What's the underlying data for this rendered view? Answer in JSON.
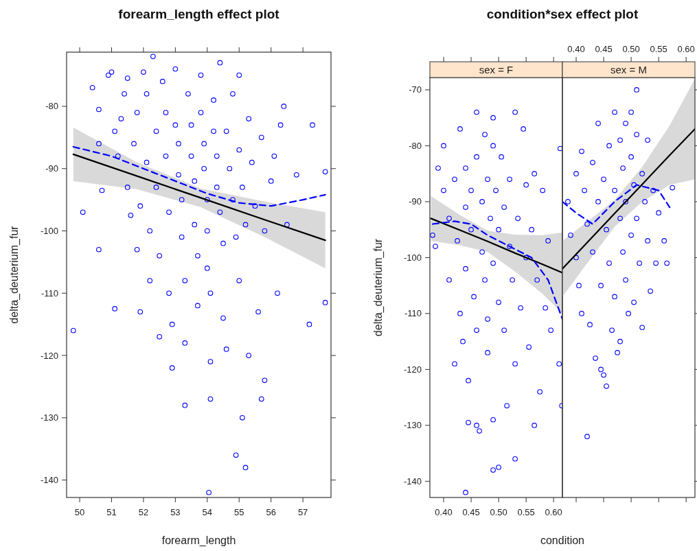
{
  "chart_data": [
    {
      "type": "scatter",
      "title": "forearm_length effect plot",
      "xlabel": "forearm_length",
      "ylabel": "delta_deuterium_fur",
      "xlim": [
        49.59,
        57.88
      ],
      "xticks": [
        50,
        51,
        52,
        53,
        54,
        55,
        56,
        57
      ],
      "ylim": [
        -142.8,
        -71.3
      ],
      "yticks": [
        -80,
        -90,
        -100,
        -110,
        -120,
        -130,
        -140
      ],
      "series": [
        {
          "type": "scatter",
          "marker": "circle",
          "color": "#0000ff",
          "x": [
            49.8,
            50.1,
            50.4,
            50.6,
            50.6,
            50.7,
            50.6,
            50.9,
            51.0,
            51.1,
            51.2,
            51.1,
            51.3,
            51.4,
            51.5,
            51.5,
            51.6,
            51.7,
            51.8,
            51.8,
            51.9,
            51.9,
            52.0,
            52.1,
            52.1,
            52.2,
            52.2,
            52.3,
            52.4,
            52.4,
            52.5,
            52.5,
            52.6,
            52.7,
            52.7,
            52.8,
            52.8,
            52.9,
            52.9,
            53.0,
            53.0,
            53.1,
            53.1,
            53.2,
            53.2,
            53.3,
            53.3,
            53.3,
            53.4,
            53.5,
            53.5,
            53.6,
            53.6,
            53.7,
            53.7,
            53.8,
            53.8,
            53.9,
            53.9,
            54.0,
            54.0,
            54.0,
            54.1,
            54.1,
            54.1,
            54.05,
            54.2,
            54.2,
            54.3,
            54.3,
            54.4,
            54.4,
            54.5,
            54.5,
            54.6,
            54.6,
            54.7,
            54.8,
            54.8,
            54.9,
            54.9,
            55.0,
            55.0,
            55.0,
            55.1,
            55.1,
            55.2,
            55.2,
            55.3,
            55.3,
            55.4,
            55.5,
            55.6,
            55.7,
            55.7,
            55.8,
            55.8,
            56.0,
            56.1,
            56.2,
            56.3,
            56.4,
            56.5,
            56.8,
            57.2,
            57.3,
            57.7,
            57.7
          ],
          "values": [
            -116,
            -97,
            -77,
            -80.5,
            -86,
            -93.5,
            -103,
            -75,
            -74.5,
            -84,
            -88,
            -112.5,
            -82,
            -78,
            -75.5,
            -93,
            -97.5,
            -86,
            -81,
            -103,
            -96,
            -113,
            -74.5,
            -78,
            -89,
            -100,
            -108,
            -72,
            -84,
            -93,
            -104,
            -117,
            -76,
            -81,
            -88,
            -97,
            -110,
            -115,
            -122,
            -74,
            -83,
            -86,
            -91,
            -95,
            -101,
            -108,
            -118,
            -128,
            -78,
            -83,
            -88,
            -92,
            -99,
            -104,
            -112,
            -75,
            -81,
            -86,
            -90,
            -95,
            -100,
            -106,
            -110,
            -121,
            -127,
            -142,
            -79,
            -84,
            -88,
            -93,
            -73,
            -97,
            -102,
            -114,
            -119,
            -84,
            -90,
            -78,
            -95,
            -101,
            -136,
            -75,
            -87,
            -108,
            -130,
            -93,
            -99,
            -138,
            -82,
            -120,
            -89,
            -96,
            -113,
            -85,
            -127,
            -124,
            -100,
            -92,
            -88,
            -110,
            -83,
            -80,
            -99,
            -91,
            -115,
            -83,
            -90.5,
            -111.5
          ]
        },
        {
          "type": "line",
          "marker": "none",
          "color": "#000000",
          "x": [
            49.8,
            51.8,
            53.8,
            55.8,
            57.7
          ],
          "values": [
            -87.7,
            -91.2,
            -94.7,
            -98.2,
            -101.5
          ],
          "lower": [
            -92,
            -93.3,
            -96.2,
            -101,
            -106
          ],
          "upper": [
            -83.4,
            -89,
            -93.2,
            -95.3,
            -97
          ]
        },
        {
          "type": "line",
          "marker": "none",
          "line_style": "dashed",
          "color": "#0000ff",
          "x": [
            49.8,
            51,
            52,
            53,
            54,
            55,
            56,
            57,
            57.7
          ],
          "values": [
            -86.5,
            -88,
            -90,
            -92,
            -94,
            -95.5,
            -96,
            -95,
            -94.2
          ]
        }
      ]
    },
    {
      "type": "scatter",
      "title": "condition*sex effect plot",
      "subtitle": "sex = F",
      "xlabel": "condition",
      "ylabel": "delta_deuterium_fur",
      "xlim": [
        0.375,
        0.616
      ],
      "xticks": [
        {
          "value": 0.4,
          "label": "0.40"
        },
        0.45,
        {
          "value": 0.5,
          "label": "0.50"
        },
        0.55,
        {
          "value": 0.6,
          "label": "0.60"
        }
      ],
      "ylim": [
        -142.9,
        -67.8
      ],
      "yticks": [
        -70,
        -80,
        -90,
        -100,
        -110,
        -120,
        -130,
        -140
      ],
      "series": [
        {
          "type": "scatter",
          "marker": "circle",
          "color": "#0000ff",
          "x": [
            0.38,
            0.385,
            0.39,
            0.4,
            0.4,
            0.41,
            0.41,
            0.42,
            0.42,
            0.425,
            0.43,
            0.43,
            0.435,
            0.44,
            0.44,
            0.44,
            0.445,
            0.445,
            0.44,
            0.45,
            0.45,
            0.455,
            0.46,
            0.46,
            0.46,
            0.46,
            0.465,
            0.47,
            0.47,
            0.475,
            0.475,
            0.48,
            0.48,
            0.48,
            0.485,
            0.49,
            0.49,
            0.49,
            0.49,
            0.49,
            0.495,
            0.5,
            0.5,
            0.5,
            0.505,
            0.51,
            0.51,
            0.515,
            0.52,
            0.52,
            0.525,
            0.53,
            0.53,
            0.53,
            0.535,
            0.54,
            0.545,
            0.55,
            0.55,
            0.555,
            0.56,
            0.565,
            0.565,
            0.57,
            0.575,
            0.58,
            0.585,
            0.59,
            0.595,
            0.61,
            0.615,
            0.612
          ],
          "values": [
            -96,
            -98,
            -84,
            -80,
            -88,
            -93,
            -104,
            -119,
            -86,
            -97,
            -77,
            -110,
            -115,
            -84,
            -91,
            -102,
            -122,
            -129.5,
            -142,
            -88,
            -95,
            -107,
            -74,
            -82,
            -113,
            -130,
            -131,
            -90,
            -99,
            -78,
            -104,
            -86,
            -111,
            -117,
            -93,
            -75,
            -80,
            -101,
            -129,
            -138,
            -88,
            -95,
            -108,
            -137.5,
            -82,
            -91,
            -113,
            -126.5,
            -86,
            -98,
            -104,
            -74,
            -119,
            -136,
            -93,
            -109,
            -77,
            -87,
            -100,
            -116,
            -95,
            -85,
            -130,
            -104,
            -124,
            -88,
            -109,
            -97,
            -113,
            -119,
            -126.5,
            -80.5
          ]
        },
        {
          "type": "line",
          "marker": "none",
          "color": "#000000",
          "x": [
            0.377,
            0.43,
            0.48,
            0.53,
            0.58,
            0.616
          ],
          "values": [
            -93,
            -95.1,
            -97.1,
            -99.2,
            -101.2,
            -102.7
          ],
          "lower": [
            -97,
            -97.8,
            -99,
            -102.5,
            -106.5,
            -110
          ],
          "upper": [
            -89,
            -92.4,
            -95.2,
            -95.9,
            -96,
            -95.5
          ]
        },
        {
          "type": "line",
          "marker": "none",
          "line_style": "dashed",
          "color": "#0000ff",
          "x": [
            0.38,
            0.42,
            0.45,
            0.48,
            0.52,
            0.56,
            0.59,
            0.616
          ],
          "values": [
            -94,
            -93.5,
            -94,
            -96,
            -98,
            -100,
            -104,
            -111
          ]
        }
      ]
    },
    {
      "type": "scatter",
      "subtitle": "sex = M",
      "xlim": [
        0.375,
        0.616
      ],
      "xticks": [
        {
          "value": 0.4,
          "label": "0.40"
        },
        0.45,
        {
          "value": 0.5,
          "label": "0.50"
        },
        0.55,
        {
          "value": 0.6,
          "label": "0.60"
        }
      ],
      "ylim": [
        -142.9,
        -67.8
      ],
      "yticks": [
        -70,
        -80,
        -90,
        -100,
        -110,
        -120,
        -130,
        -140
      ],
      "tick_labels": "x",
      "series": [
        {
          "type": "scatter",
          "marker": "circle",
          "color": "#0000ff",
          "x": [
            0.385,
            0.39,
            0.4,
            0.4,
            0.405,
            0.41,
            0.41,
            0.415,
            0.42,
            0.42,
            0.425,
            0.43,
            0.43,
            0.435,
            0.44,
            0.44,
            0.445,
            0.445,
            0.45,
            0.45,
            0.455,
            0.455,
            0.46,
            0.46,
            0.465,
            0.47,
            0.47,
            0.47,
            0.475,
            0.48,
            0.48,
            0.48,
            0.485,
            0.485,
            0.49,
            0.49,
            0.49,
            0.495,
            0.5,
            0.5,
            0.5,
            0.505,
            0.505,
            0.51,
            0.51,
            0.51,
            0.515,
            0.52,
            0.52,
            0.525,
            0.53,
            0.53,
            0.535,
            0.54,
            0.545,
            0.55,
            0.56,
            0.565,
            0.575
          ],
          "values": [
            -90,
            -96,
            -85,
            -100,
            -105,
            -110,
            -81,
            -88,
            -94,
            -132,
            -112,
            -83,
            -99,
            -118,
            -76,
            -90,
            -105,
            -120,
            -121,
            -86,
            -95,
            -123,
            -80,
            -101,
            -113,
            -74,
            -88,
            -107,
            -117,
            -79,
            -93,
            -115,
            -84,
            -99,
            -76,
            -90,
            -104,
            -110,
            -74,
            -82,
            -96,
            -87,
            -108,
            -70,
            -78,
            -93,
            -101,
            -85,
            -112.5,
            -90,
            -79,
            -97,
            -106,
            -88,
            -101,
            -92,
            -97,
            -101,
            -87.5
          ]
        },
        {
          "type": "line",
          "marker": "none",
          "color": "#000000",
          "x": [
            0.375,
            0.42,
            0.47,
            0.52,
            0.57,
            0.616
          ],
          "values": [
            -102,
            -97.3,
            -92.1,
            -86.9,
            -81.7,
            -77
          ],
          "lower": [
            -107,
            -101,
            -94.5,
            -90,
            -87,
            -86
          ],
          "upper": [
            -97,
            -93.6,
            -89.7,
            -83.8,
            -76.4,
            -68
          ]
        },
        {
          "type": "line",
          "marker": "none",
          "line_style": "dashed",
          "color": "#0000ff",
          "x": [
            0.375,
            0.4,
            0.43,
            0.47,
            0.51,
            0.55,
            0.57
          ],
          "values": [
            -90,
            -92,
            -94,
            -90,
            -87,
            -88,
            -91
          ]
        }
      ]
    }
  ]
}
